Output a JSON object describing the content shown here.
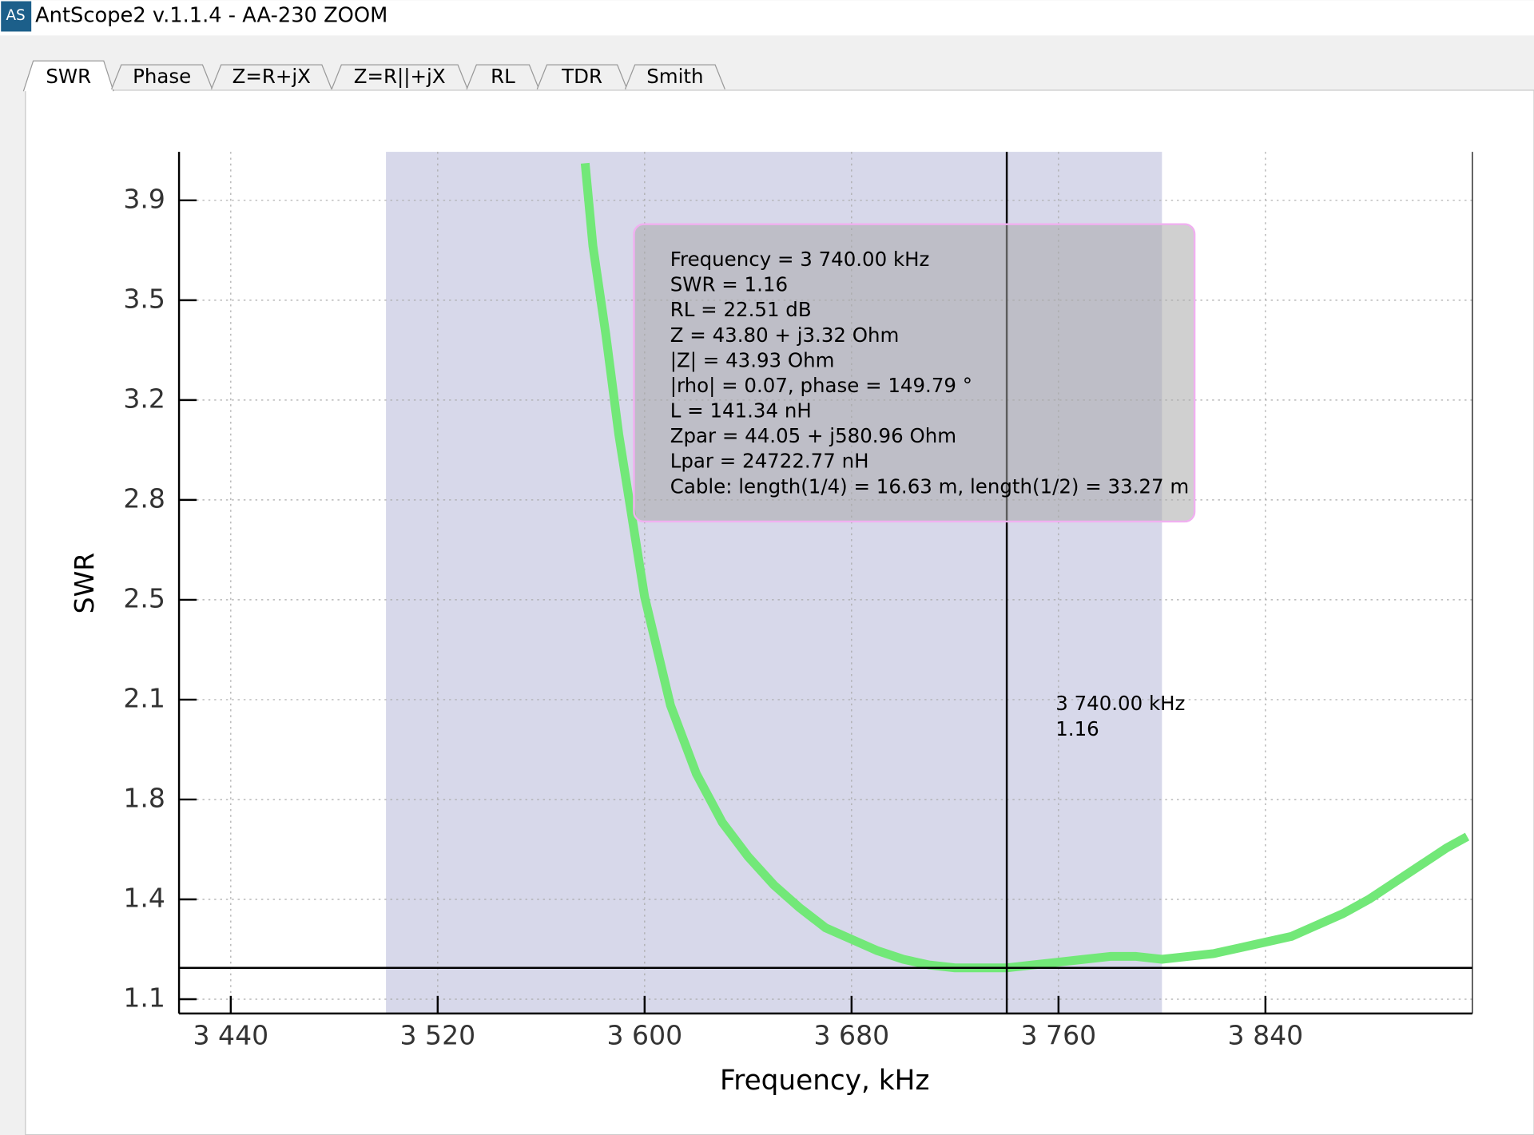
{
  "window": {
    "icon": "AS",
    "title": "AntScope2 v.1.1.4 - AA-230 ZOOM"
  },
  "tabs": [
    "SWR",
    "Phase",
    "Z=R+jX",
    "Z=R||+jX",
    "RL",
    "TDR",
    "Smith"
  ],
  "chart_data": {
    "type": "line",
    "x_label": "Frequency, kHz",
    "y_label": "SWR",
    "x": [
      3577,
      3580,
      3585,
      3590,
      3600,
      3610,
      3620,
      3630,
      3640,
      3650,
      3660,
      3670,
      3680,
      3690,
      3700,
      3710,
      3720,
      3730,
      3740,
      3750,
      3760,
      3770,
      3780,
      3790,
      3800,
      3810,
      3820,
      3830,
      3840,
      3850,
      3860,
      3870,
      3880,
      3890,
      3900,
      3910,
      3918
    ],
    "values": [
      3.98,
      3.69,
      3.38,
      3.03,
      2.46,
      2.08,
      1.84,
      1.67,
      1.55,
      1.45,
      1.37,
      1.3,
      1.26,
      1.22,
      1.19,
      1.17,
      1.16,
      1.16,
      1.16,
      1.17,
      1.18,
      1.19,
      1.2,
      1.2,
      1.19,
      1.2,
      1.21,
      1.23,
      1.25,
      1.27,
      1.31,
      1.35,
      1.4,
      1.46,
      1.52,
      1.58,
      1.62
    ],
    "color": "#72e878",
    "xlim": [
      3420,
      3920
    ],
    "xticks": [
      {
        "value": 3440,
        "label": "3 440"
      },
      {
        "value": 3520,
        "label": "3 520"
      },
      {
        "value": 3600,
        "label": "3 600"
      },
      {
        "value": 3680,
        "label": "3 680"
      },
      {
        "value": 3760,
        "label": "3 760"
      },
      {
        "value": 3840,
        "label": "3 840"
      }
    ],
    "ylim": [
      1.0,
      4.02
    ],
    "yticks": [
      {
        "value": 1.05,
        "label": "1.1"
      },
      1.4,
      {
        "value": 1.75,
        "label": "1.8"
      },
      2.1,
      {
        "value": 2.45,
        "label": "2.5"
      },
      2.8,
      {
        "value": 3.15,
        "label": "3.2"
      },
      3.5,
      {
        "value": 3.85,
        "label": "3.9"
      }
    ],
    "grid": true,
    "band": [
      3500,
      3800
    ],
    "band_color": "#d7d8ea",
    "cursor": {
      "x": 3740,
      "y": 1.16
    },
    "cursor_label": [
      "3 740.00 kHz",
      "1.16"
    ],
    "tooltip": [
      "Frequency = 3 740.00 kHz",
      "SWR = 1.16",
      "RL = 22.51 dB",
      "Z = 43.80 + j3.32 Ohm",
      "|Z| = 43.93 Ohm",
      "|rho| = 0.07, phase = 149.79 °",
      "L = 141.34 nH",
      "Zpar = 44.05 + j580.96 Ohm",
      "Lpar = 24722.77 nH",
      "Cable: length(1/4) = 16.63 m, length(1/2) = 33.27 m"
    ]
  }
}
